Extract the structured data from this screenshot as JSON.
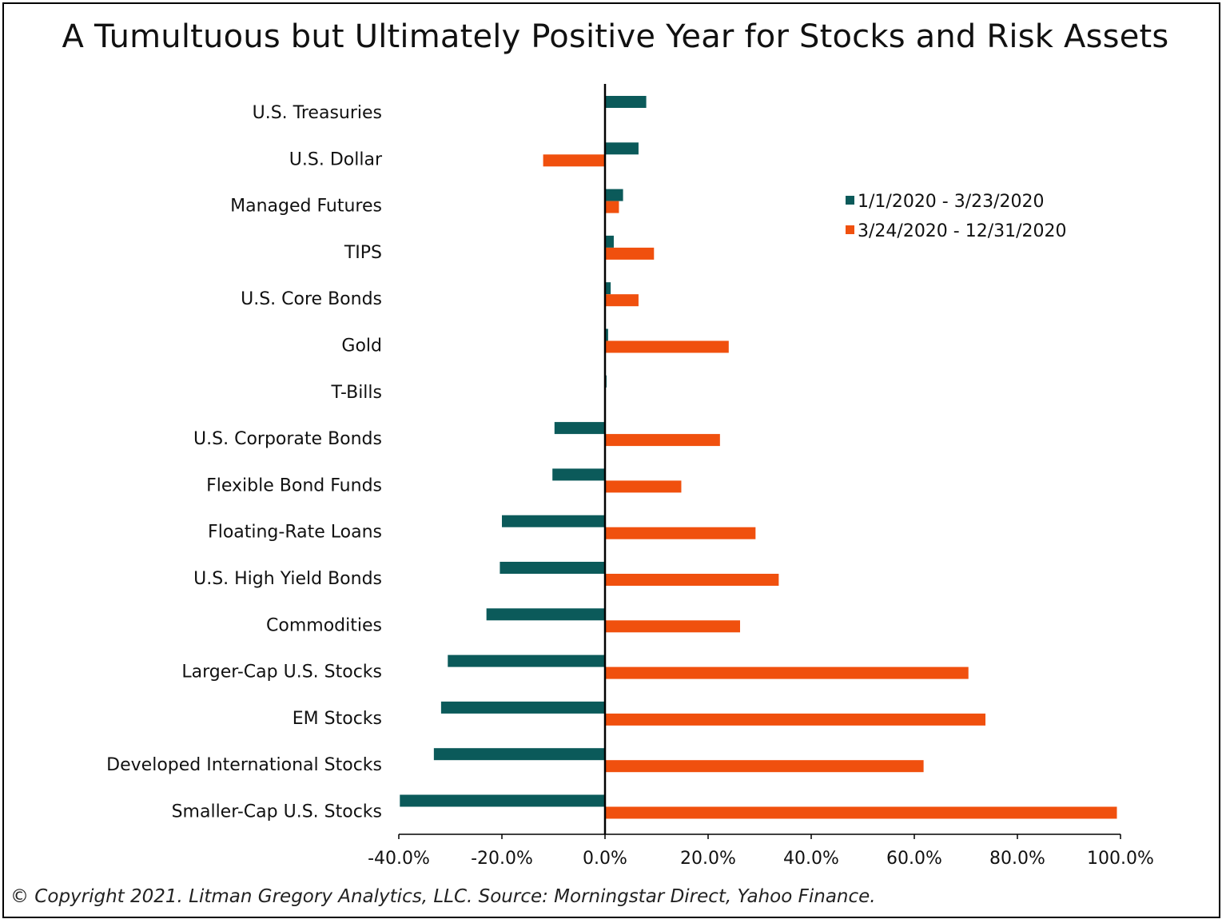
{
  "chart_data": {
    "type": "bar",
    "orientation": "horizontal",
    "title": "A Tumultuous but Ultimately Positive Year for Stocks and Risk Assets",
    "categories": [
      "U.S. Treasuries",
      "U.S. Dollar",
      "Managed Futures",
      "TIPS",
      "U.S. Core Bonds",
      "Gold",
      "T-Bills",
      "U.S. Corporate Bonds",
      "Flexible Bond Funds",
      "Floating-Rate Loans",
      "U.S. High Yield Bonds",
      "Commodities",
      "Larger-Cap U.S. Stocks",
      "EM Stocks",
      "Developed International Stocks",
      "Smaller-Cap U.S. Stocks"
    ],
    "series": [
      {
        "name": "1/1/2020 - 3/23/2020",
        "color": "#0b5a5a",
        "values": [
          8.0,
          6.5,
          3.5,
          1.7,
          1.1,
          0.6,
          0.3,
          -9.8,
          -10.2,
          -20.0,
          -20.4,
          -23.0,
          -30.5,
          -31.8,
          -33.2,
          -39.8
        ]
      },
      {
        "name": "3/24/2020 - 12/31/2020",
        "color": "#f0500e",
        "values": [
          0.0,
          -12.0,
          2.7,
          9.5,
          6.5,
          24.0,
          0.0,
          22.3,
          14.8,
          29.2,
          33.7,
          26.2,
          70.5,
          73.8,
          61.8,
          99.3
        ]
      }
    ],
    "xlim": [
      -40,
      100
    ],
    "xticks": [
      "-40.0%",
      "-20.0%",
      "0.0%",
      "20.0%",
      "40.0%",
      "60.0%",
      "80.0%",
      "100.0%"
    ],
    "xtick_values": [
      -40,
      -20,
      0,
      20,
      40,
      60,
      80,
      100
    ],
    "legend": "upper-right",
    "grid": false
  },
  "footer": "© Copyright 2021. Litman Gregory Analytics, LLC. Source: Morningstar Direct, Yahoo Finance."
}
